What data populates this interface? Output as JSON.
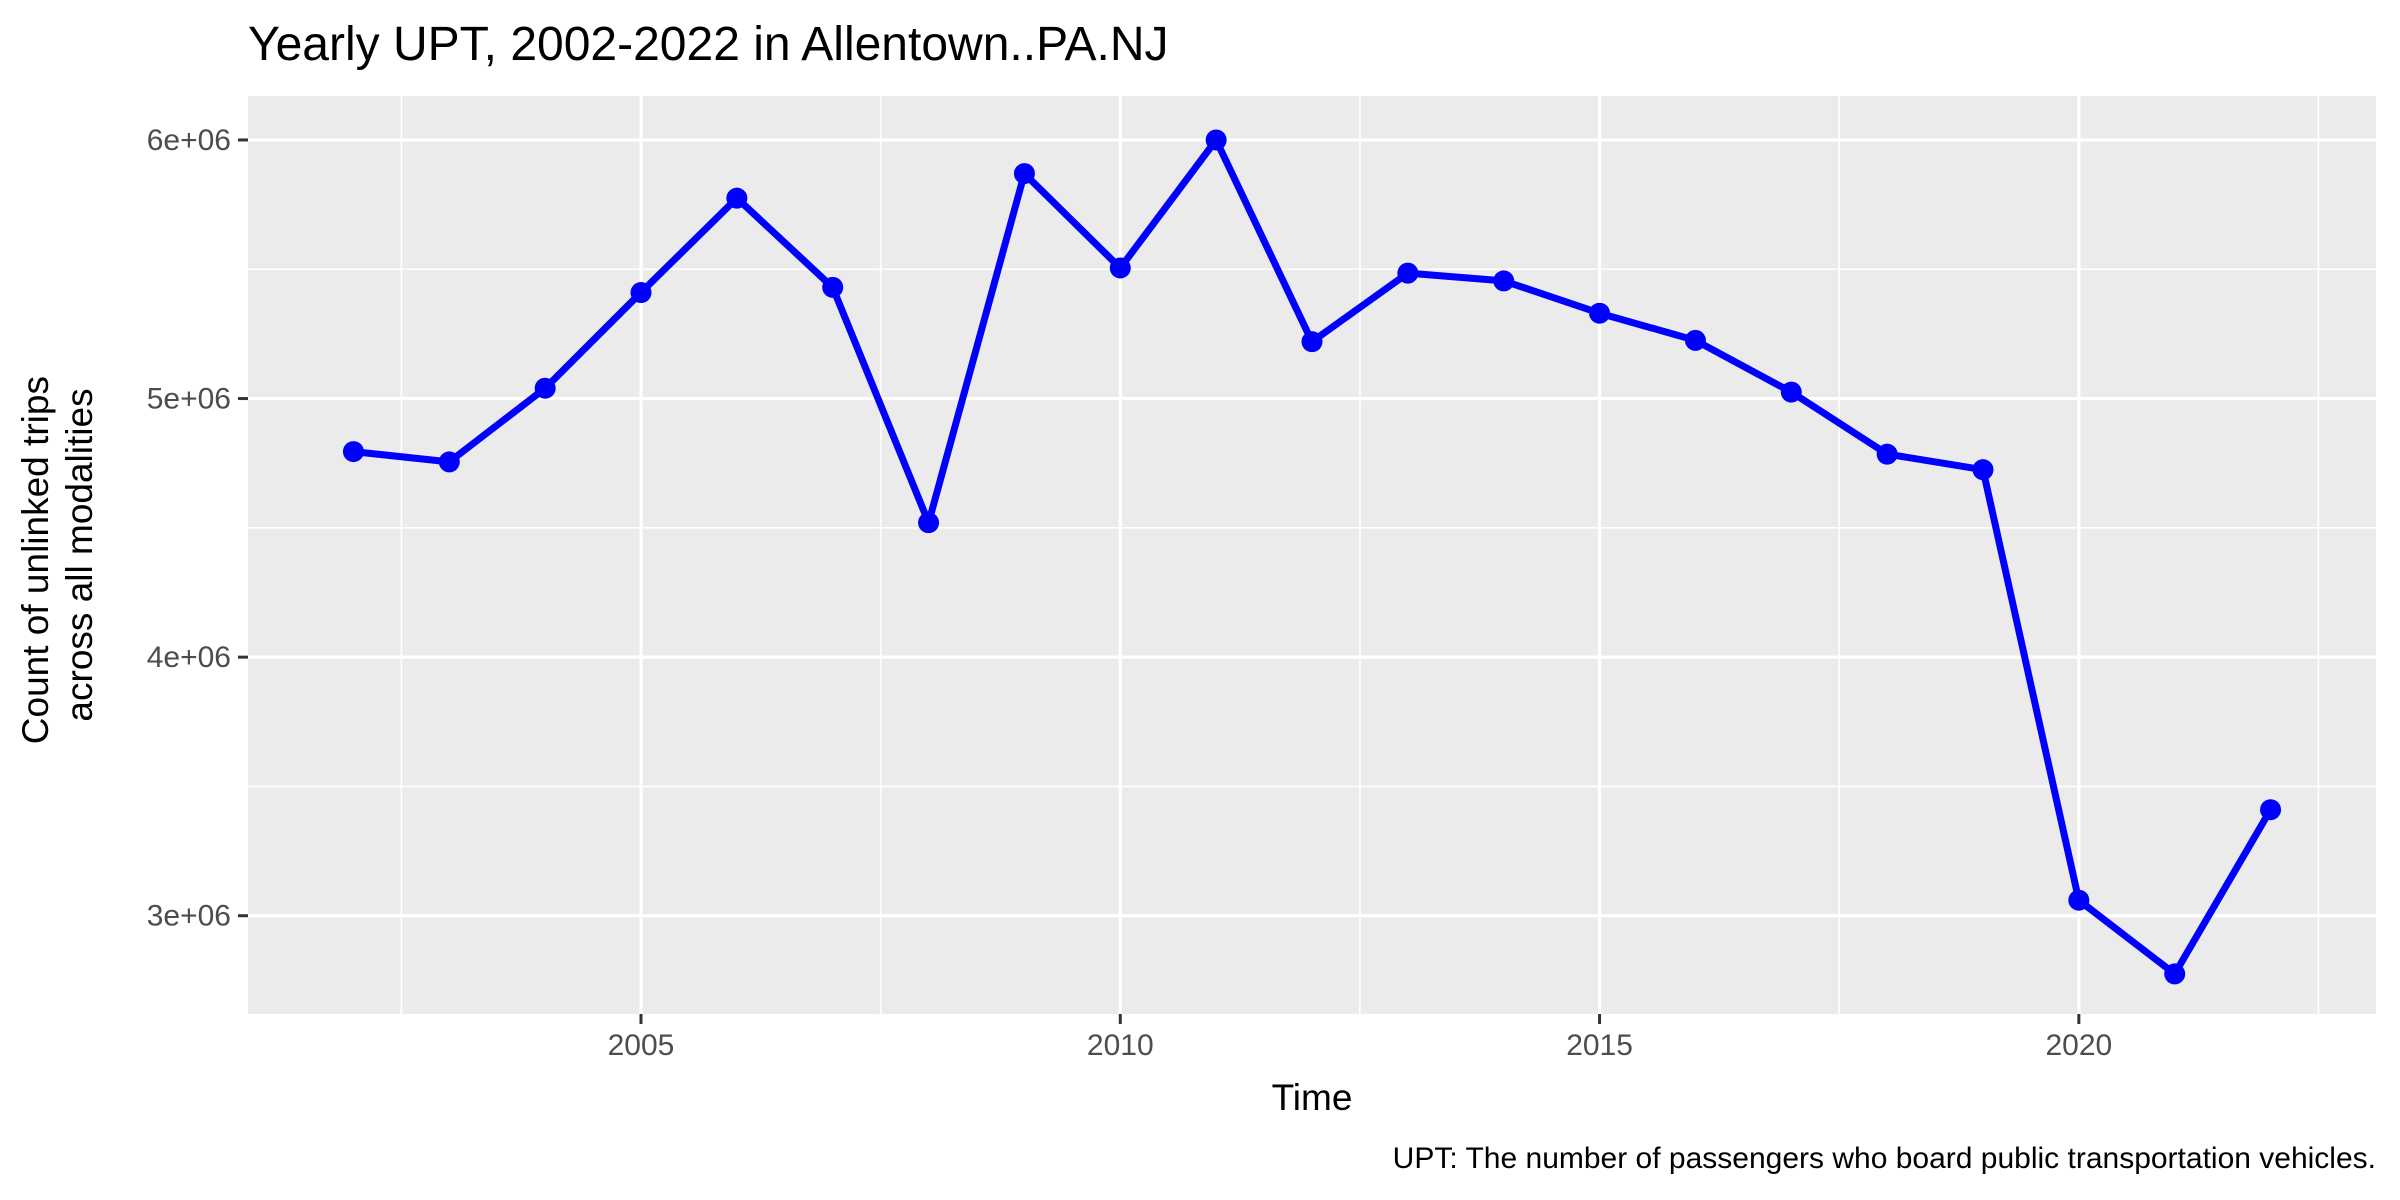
{
  "chart_data": {
    "type": "line",
    "title": "Yearly UPT, 2002-2022 in Allentown..PA.NJ",
    "xlabel": "Time",
    "ylabel_lines": [
      "Count of unlinked trips",
      "across all modalities"
    ],
    "caption": "UPT: The number of passengers who board public transportation vehicles.",
    "x": [
      2002,
      2003,
      2004,
      2005,
      2006,
      2007,
      2008,
      2009,
      2010,
      2011,
      2012,
      2013,
      2014,
      2015,
      2016,
      2017,
      2018,
      2019,
      2020,
      2021,
      2022
    ],
    "series": [
      {
        "values": [
          4795000,
          4755000,
          5040000,
          5410000,
          5775000,
          5430000,
          4520000,
          5870000,
          5505000,
          6000000,
          5220000,
          5485000,
          5455000,
          5330000,
          5225000,
          5025000,
          4785000,
          4725000,
          3060000,
          2775000,
          3410000
        ],
        "color": "#0000ff"
      }
    ],
    "xlim": [
      2000.9,
      2023.1
    ],
    "ylim": [
      2620000,
      6170000
    ],
    "x_ticks": [
      2005,
      2010,
      2015,
      2020
    ],
    "x_tick_labels": [
      "2005",
      "2010",
      "2015",
      "2020"
    ],
    "y_ticks": [
      3000000,
      4000000,
      5000000,
      6000000
    ],
    "y_tick_labels": [
      "3e+06",
      "4e+06",
      "5e+06",
      "6e+06"
    ],
    "grid": true,
    "panel_background": "#ebebeb",
    "grid_color": "#ffffff"
  }
}
